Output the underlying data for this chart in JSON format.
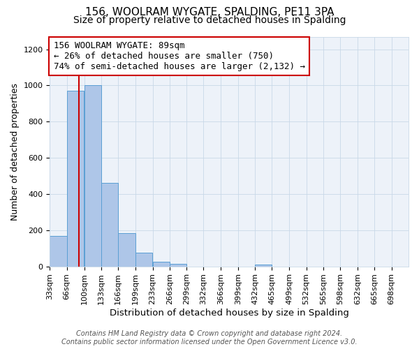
{
  "title": "156, WOOLRAM WYGATE, SPALDING, PE11 3PA",
  "subtitle": "Size of property relative to detached houses in Spalding",
  "xlabel": "Distribution of detached houses by size in Spalding",
  "ylabel": "Number of detached properties",
  "bin_edges": [
    33,
    66,
    100,
    133,
    166,
    199,
    233,
    266,
    299,
    332,
    366,
    399,
    432,
    465,
    499,
    532,
    565,
    598,
    632,
    665,
    698
  ],
  "bin_labels": [
    "33sqm",
    "66sqm",
    "100sqm",
    "133sqm",
    "166sqm",
    "199sqm",
    "233sqm",
    "266sqm",
    "299sqm",
    "332sqm",
    "366sqm",
    "399sqm",
    "432sqm",
    "465sqm",
    "499sqm",
    "532sqm",
    "565sqm",
    "598sqm",
    "632sqm",
    "665sqm",
    "698sqm"
  ],
  "bar_heights": [
    170,
    970,
    1000,
    460,
    185,
    75,
    25,
    15,
    0,
    0,
    0,
    0,
    10,
    0,
    0,
    0,
    0,
    0,
    0,
    0
  ],
  "bar_color": "#aec6e8",
  "bar_edgecolor": "#5a9fd4",
  "property_value": 89,
  "vline_color": "#cc0000",
  "annotation_line1": "156 WOOLRAM WYGATE: 89sqm",
  "annotation_line2": "← 26% of detached houses are smaller (750)",
  "annotation_line3": "74% of semi-detached houses are larger (2,132) →",
  "annotation_box_edgecolor": "#cc0000",
  "annotation_box_facecolor": "#ffffff",
  "ylim": [
    0,
    1270
  ],
  "yticks": [
    0,
    200,
    400,
    600,
    800,
    1000,
    1200
  ],
  "footer_line1": "Contains HM Land Registry data © Crown copyright and database right 2024.",
  "footer_line2": "Contains public sector information licensed under the Open Government Licence v3.0.",
  "title_fontsize": 11,
  "subtitle_fontsize": 10,
  "xlabel_fontsize": 9.5,
  "ylabel_fontsize": 9,
  "tick_fontsize": 8,
  "annotation_fontsize": 9,
  "footer_fontsize": 7
}
